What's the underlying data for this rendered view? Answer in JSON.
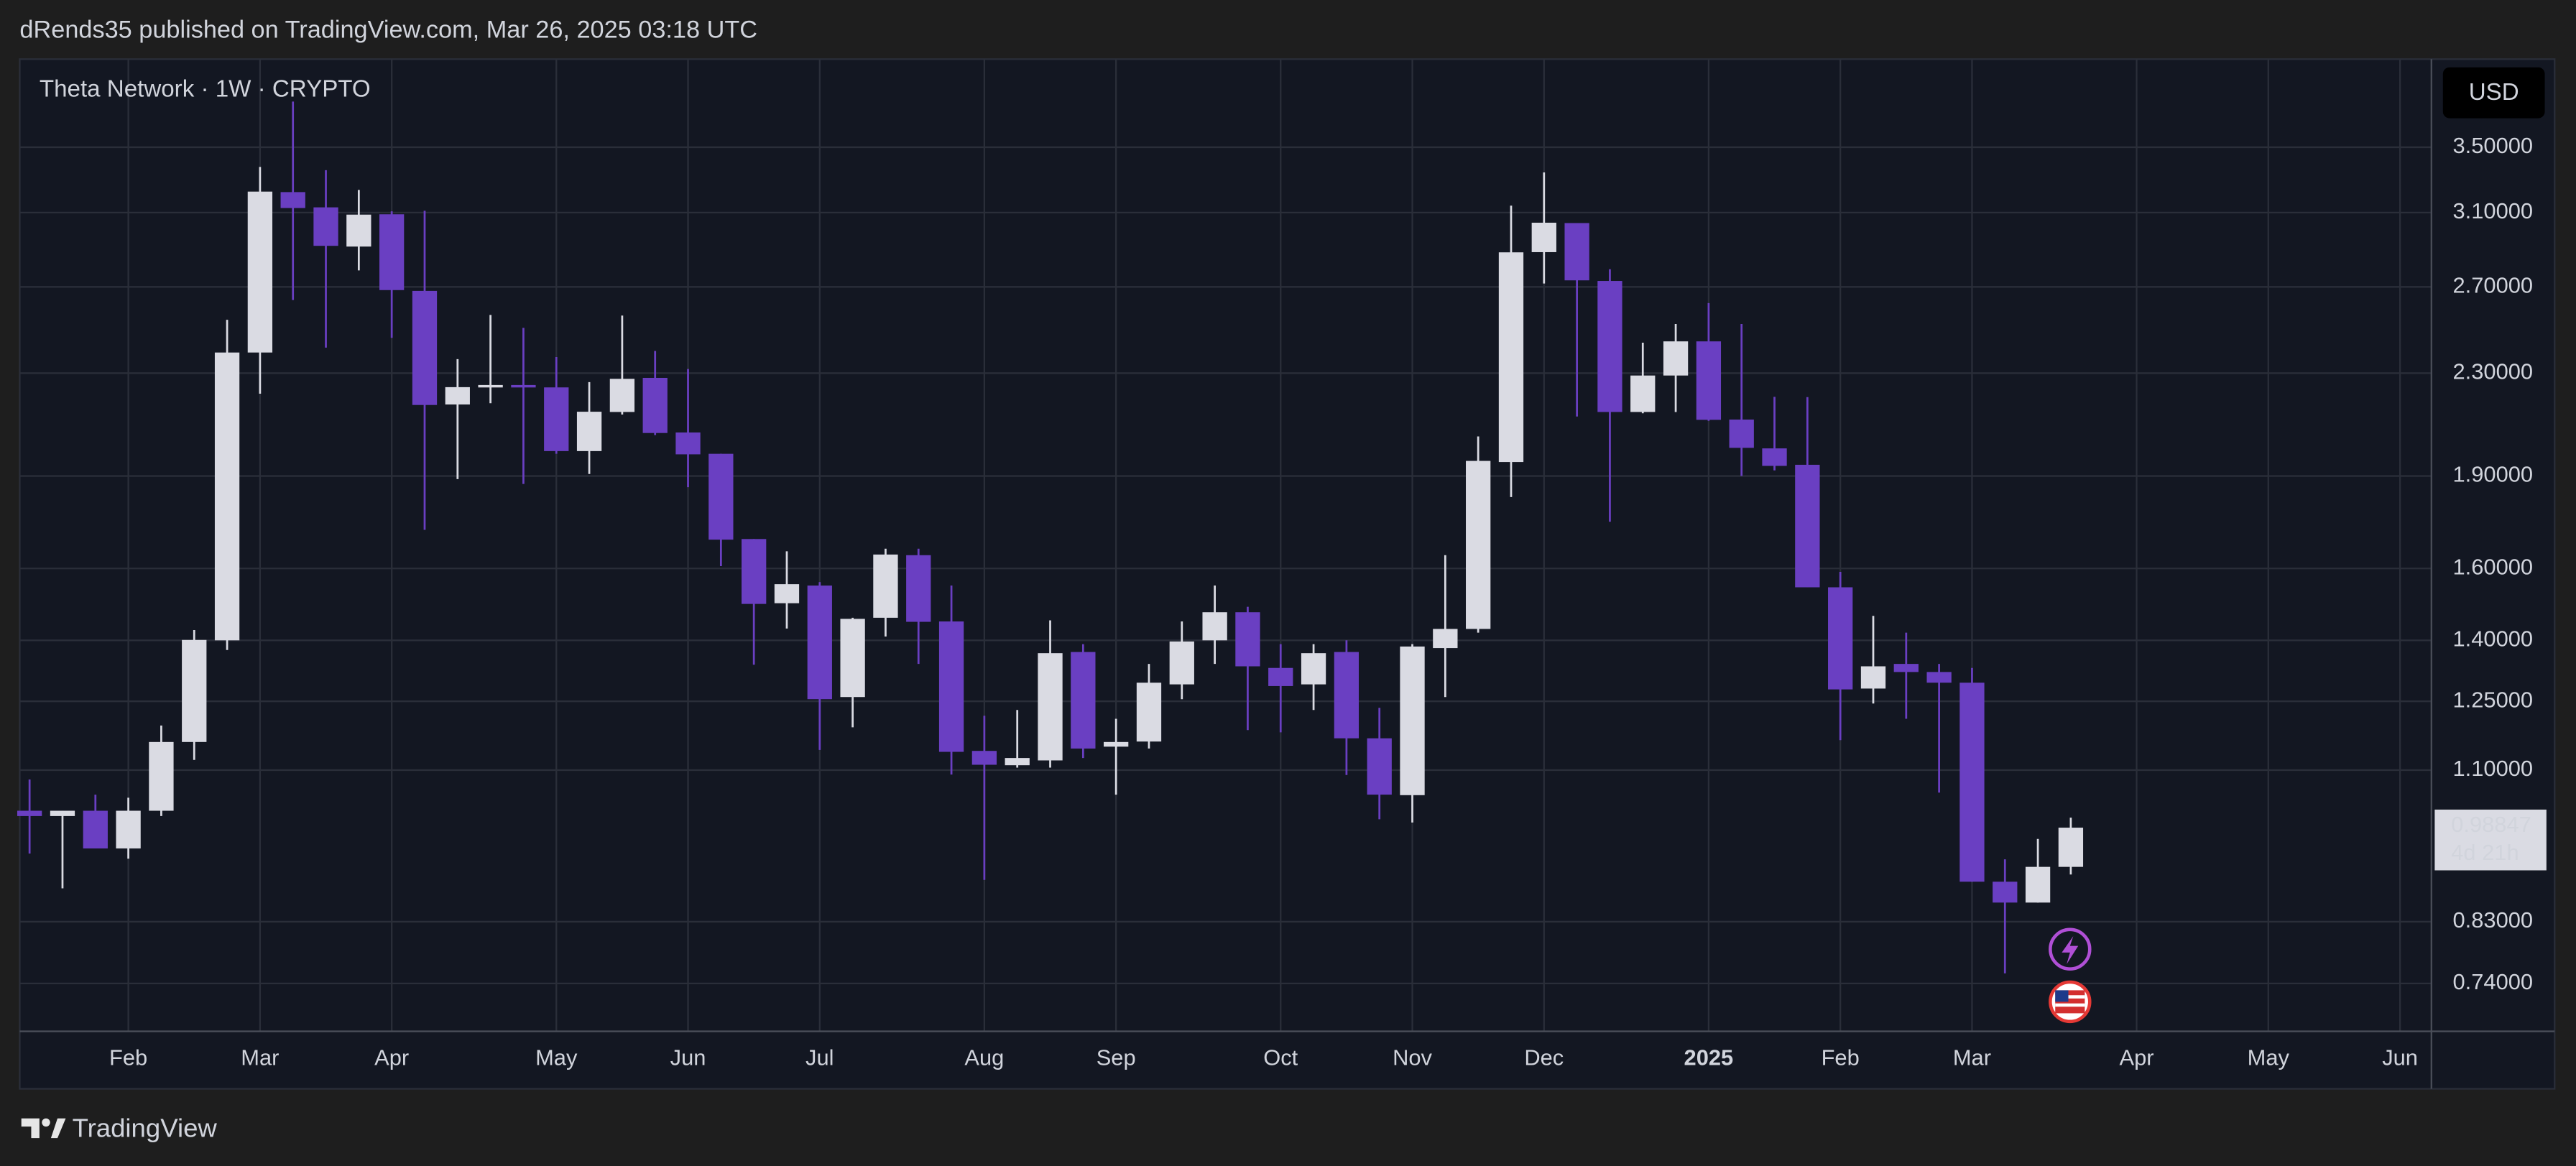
{
  "header": {
    "text": "dRends35 published on TradingView.com, Mar 26, 2025 03:18 UTC"
  },
  "chart_data": {
    "type": "candlestick",
    "title": "Theta Network · 1W · CRYPTO",
    "currency": "USD",
    "categories": [
      null,
      null,
      null,
      "Feb",
      null,
      null,
      null,
      "Mar",
      null,
      null,
      null,
      "Apr",
      null,
      null,
      null,
      null,
      "May",
      null,
      null,
      null,
      "Jun",
      null,
      null,
      null,
      "Jul",
      null,
      null,
      null,
      null,
      "Aug",
      null,
      null,
      null,
      "Sep",
      null,
      null,
      null,
      null,
      "Oct",
      null,
      null,
      null,
      "Nov",
      null,
      null,
      null,
      "Dec",
      null,
      null,
      null,
      null,
      "2025",
      null,
      null,
      null,
      "Feb",
      null,
      null,
      null,
      "Mar",
      null,
      null,
      null,
      null,
      "Apr",
      null,
      null,
      null,
      "May",
      null,
      null,
      null,
      "Jun"
    ],
    "open": [
      1.02,
      1.01,
      1.02,
      0.951,
      1.02,
      1.159,
      1.4,
      2.39,
      3.22,
      3.13,
      2.91,
      3.09,
      2.68,
      2.17,
      2.24,
      2.25,
      2.24,
      1.99,
      2.14,
      2.28,
      2.06,
      1.98,
      1.69,
      1.5,
      1.55,
      1.26,
      1.46,
      1.64,
      1.45,
      1.14,
      1.11,
      1.12,
      1.37,
      1.149,
      1.16,
      1.29,
      1.4,
      1.475,
      1.33,
      1.29,
      1.37,
      1.167,
      1.05,
      1.38,
      1.43,
      1.95,
      2.88,
      3.04,
      2.73,
      2.14,
      2.29,
      2.44,
      2.11,
      2.0,
      1.94,
      1.545,
      1.28,
      1.34,
      1.32,
      1.294,
      0.894,
      0.86,
      0.919,
      null,
      null,
      null,
      null,
      null,
      null,
      null,
      null,
      null,
      null
    ],
    "high": [
      1.081,
      1.02,
      1.051,
      1.045,
      1.195,
      1.427,
      2.54,
      3.374,
      3.81,
      3.354,
      3.233,
      3.107,
      3.11,
      2.361,
      2.563,
      2.502,
      2.37,
      2.262,
      2.56,
      2.397,
      2.318,
      1.98,
      1.69,
      1.652,
      1.56,
      1.46,
      1.66,
      1.66,
      1.55,
      1.217,
      1.23,
      1.453,
      1.39,
      1.21,
      1.34,
      1.45,
      1.55,
      1.49,
      1.39,
      1.39,
      1.4,
      1.235,
      1.39,
      1.64,
      2.045,
      3.14,
      3.34,
      3.04,
      2.79,
      2.434,
      2.52,
      2.62,
      2.52,
      2.201,
      2.2,
      1.59,
      1.465,
      1.42,
      1.34,
      1.33,
      0.932,
      0.968,
      1.007,
      null,
      null,
      null,
      null,
      null,
      null,
      null,
      null,
      null,
      null
    ],
    "low": [
      0.942,
      0.883,
      0.951,
      0.933,
      1.01,
      1.121,
      1.375,
      2.214,
      2.635,
      2.412,
      2.784,
      2.456,
      1.719,
      1.889,
      2.175,
      1.872,
      1.98,
      1.907,
      2.13,
      2.05,
      1.861,
      1.607,
      1.338,
      1.431,
      1.142,
      1.191,
      1.41,
      1.34,
      1.091,
      0.897,
      1.105,
      1.105,
      1.125,
      1.051,
      1.145,
      1.255,
      1.34,
      1.185,
      1.18,
      1.23,
      1.09,
      1.004,
      0.998,
      1.26,
      1.42,
      1.827,
      2.717,
      2.122,
      1.745,
      2.135,
      2.14,
      2.105,
      1.9,
      1.92,
      1.545,
      1.163,
      1.245,
      1.21,
      1.055,
      0.894,
      0.754,
      0.86,
      0.906,
      null,
      null,
      null,
      null,
      null,
      null,
      null,
      null,
      null,
      null
    ],
    "close": [
      1.01,
      1.02,
      0.951,
      1.02,
      1.159,
      1.401,
      2.39,
      3.223,
      3.126,
      2.914,
      3.088,
      2.684,
      2.168,
      2.241,
      2.25,
      2.24,
      1.99,
      2.141,
      2.276,
      2.058,
      1.978,
      1.688,
      1.498,
      1.554,
      1.255,
      1.457,
      1.642,
      1.449,
      1.138,
      1.111,
      1.125,
      1.367,
      1.145,
      1.159,
      1.294,
      1.397,
      1.475,
      1.334,
      1.286,
      1.367,
      1.167,
      1.051,
      1.384,
      1.43,
      1.954,
      2.879,
      3.042,
      2.733,
      2.14,
      2.29,
      2.44,
      2.109,
      2.002,
      1.936,
      1.545,
      1.278,
      1.334,
      1.32,
      1.294,
      0.894,
      0.86,
      0.919,
      0.98847,
      null,
      null,
      null,
      null,
      null,
      null,
      null,
      null,
      null,
      null
    ],
    "up_color": "#dadbe3",
    "down_color": "#6a3fc2",
    "log_scale": true,
    "ylim": [
      0.677,
      4.11
    ],
    "yticks": [
      {
        "value": 3.5,
        "label": "3.50000"
      },
      {
        "value": 3.1,
        "label": "3.10000"
      },
      {
        "value": 2.7,
        "label": "2.70000"
      },
      {
        "value": 2.3,
        "label": "2.30000"
      },
      {
        "value": 1.9,
        "label": "1.90000"
      },
      {
        "value": 1.6,
        "label": "1.60000"
      },
      {
        "value": 1.4,
        "label": "1.40000"
      },
      {
        "value": 1.25,
        "label": "1.25000"
      },
      {
        "value": 1.1,
        "label": "1.10000"
      },
      {
        "value": 0.83,
        "label": "0.83000"
      },
      {
        "value": 0.74,
        "label": "0.74000"
      }
    ],
    "last_price": 0.98847,
    "countdown": "4d 21h",
    "grid": true
  },
  "footer": {
    "brand": "TradingView"
  }
}
